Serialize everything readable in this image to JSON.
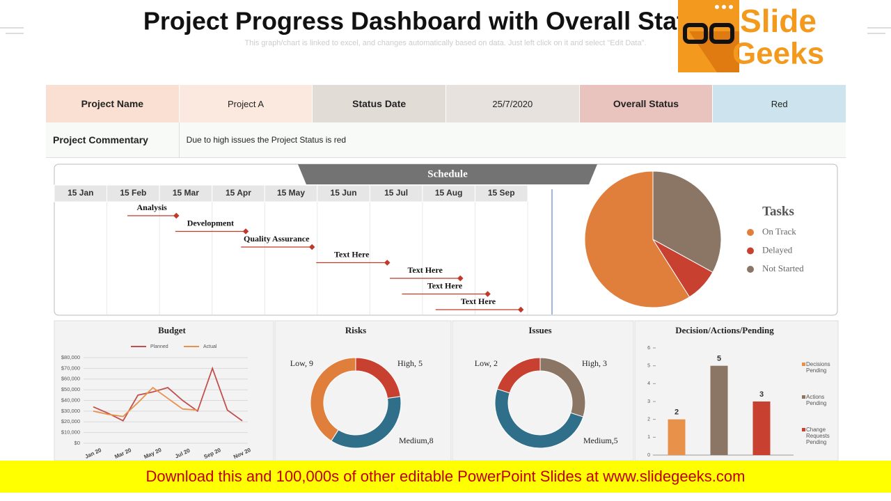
{
  "header": {
    "title": "Project Progress Dashboard with Overall Status",
    "subtitle": "This graph/chart is linked to excel, and changes automatically based on data. Just left click on it and select \"Edit Data\".",
    "logo": [
      "Slide",
      "Geeks"
    ]
  },
  "table": {
    "rows": [
      [
        "Project Name",
        "Project A",
        "Status Date",
        "25/7/2020",
        "Overall Status",
        "Red"
      ],
      [
        "Project Commentary",
        "Due to high issues the Project Status is red"
      ]
    ]
  },
  "chart_data": [
    {
      "type": "gantt",
      "title": "Schedule",
      "color": "#c0392b",
      "xlim": [
        -0.5,
        8.5
      ],
      "xticks": [
        {
          "value": 0,
          "label": "15 Jan"
        },
        {
          "value": 1,
          "label": "15 Feb"
        },
        {
          "value": 2,
          "label": "15 Mar"
        },
        {
          "value": 3,
          "label": "15 Apr"
        },
        {
          "value": 4,
          "label": "15 May"
        },
        {
          "value": 5,
          "label": "15 Jun"
        },
        {
          "value": 6,
          "label": "15 Jul"
        },
        {
          "value": 7,
          "label": "15 Aug"
        },
        {
          "value": 8,
          "label": "15 Sep"
        }
      ],
      "tasks": [
        {
          "label": "Analysis",
          "start": 0.89,
          "end": 1.82
        },
        {
          "label": "Development",
          "start": 1.8,
          "end": 3.14
        },
        {
          "label": "Quality Assurance",
          "start": 3.05,
          "end": 4.4
        },
        {
          "label": "Text Here",
          "start": 4.48,
          "end": 5.83
        },
        {
          "label": "Text Here",
          "start": 5.88,
          "end": 7.22
        },
        {
          "label": "Text Here",
          "start": 6.11,
          "end": 7.74
        },
        {
          "label": "Text Here",
          "start": 6.75,
          "end": 8.37
        }
      ]
    },
    {
      "type": "pie",
      "title": "Tasks",
      "categories": [
        "On Track",
        "Delayed",
        "Not Started"
      ],
      "values": [
        59,
        8,
        33
      ],
      "colors": [
        "#e07f3c",
        "#c8402f",
        "#8b7565"
      ]
    },
    {
      "type": "line",
      "title": "Budget",
      "categories": [
        "Jan 20",
        null,
        "Mar 20",
        null,
        "May 20",
        null,
        "Jul 20",
        null,
        "Sep 20",
        null,
        "Nov 20"
      ],
      "series": [
        {
          "name": "Planned",
          "color": "#c0504d",
          "values": [
            34000,
            28000,
            21000,
            45000,
            48000,
            52000,
            40000,
            30000,
            70000,
            31000,
            21000
          ]
        },
        {
          "name": "Actual",
          "color": "#e8914a",
          "values": [
            30000,
            27000,
            25000,
            38000,
            52000,
            42000,
            32000,
            31000,
            null,
            null,
            null
          ]
        }
      ],
      "ylim": [
        0,
        80000
      ],
      "yticks": [
        {
          "value": 0,
          "label": "$0"
        },
        {
          "value": 10000,
          "label": "$10,000"
        },
        {
          "value": 20000,
          "label": "$20,000"
        },
        {
          "value": 30000,
          "label": "$30,000"
        },
        {
          "value": 40000,
          "label": "$40,000"
        },
        {
          "value": 50000,
          "label": "$50,000"
        },
        {
          "value": 60000,
          "label": "$60,000"
        },
        {
          "value": 70000,
          "label": "$70,000"
        },
        {
          "value": 80000,
          "label": "$80,000"
        }
      ],
      "grid": true
    },
    {
      "type": "donut",
      "title": "Risks",
      "categories": [
        "High",
        "Medium",
        "Low"
      ],
      "values": [
        5,
        8,
        9
      ],
      "value_labels": [
        "High, 5",
        "Medium,8",
        "Low, 9"
      ],
      "colors": [
        "#c8402f",
        "#2f6f8a",
        "#e07f3c"
      ]
    },
    {
      "type": "donut",
      "title": "Issues",
      "categories": [
        "High",
        "Medium",
        "Low"
      ],
      "values": [
        3,
        5,
        2
      ],
      "value_labels": [
        "High, 3",
        "Medium,5",
        "Low, 2"
      ],
      "colors": [
        "#8b7565",
        "#2f6f8a",
        "#c8402f"
      ]
    },
    {
      "type": "bar",
      "title": "Decision/Actions/Pending",
      "categories": [
        "Decisions Pending",
        "Actions Pending",
        "Change Requests Pending"
      ],
      "values": [
        2,
        5,
        3
      ],
      "colors": [
        "#e8914a",
        "#8b7565",
        "#c8402f"
      ],
      "ylim": [
        0,
        6
      ],
      "yticks": [
        0,
        1,
        2,
        3,
        4,
        5,
        6
      ]
    }
  ],
  "footer": "Download this and 100,000s of other editable PowerPoint Slides at www.slidegeeks.com"
}
